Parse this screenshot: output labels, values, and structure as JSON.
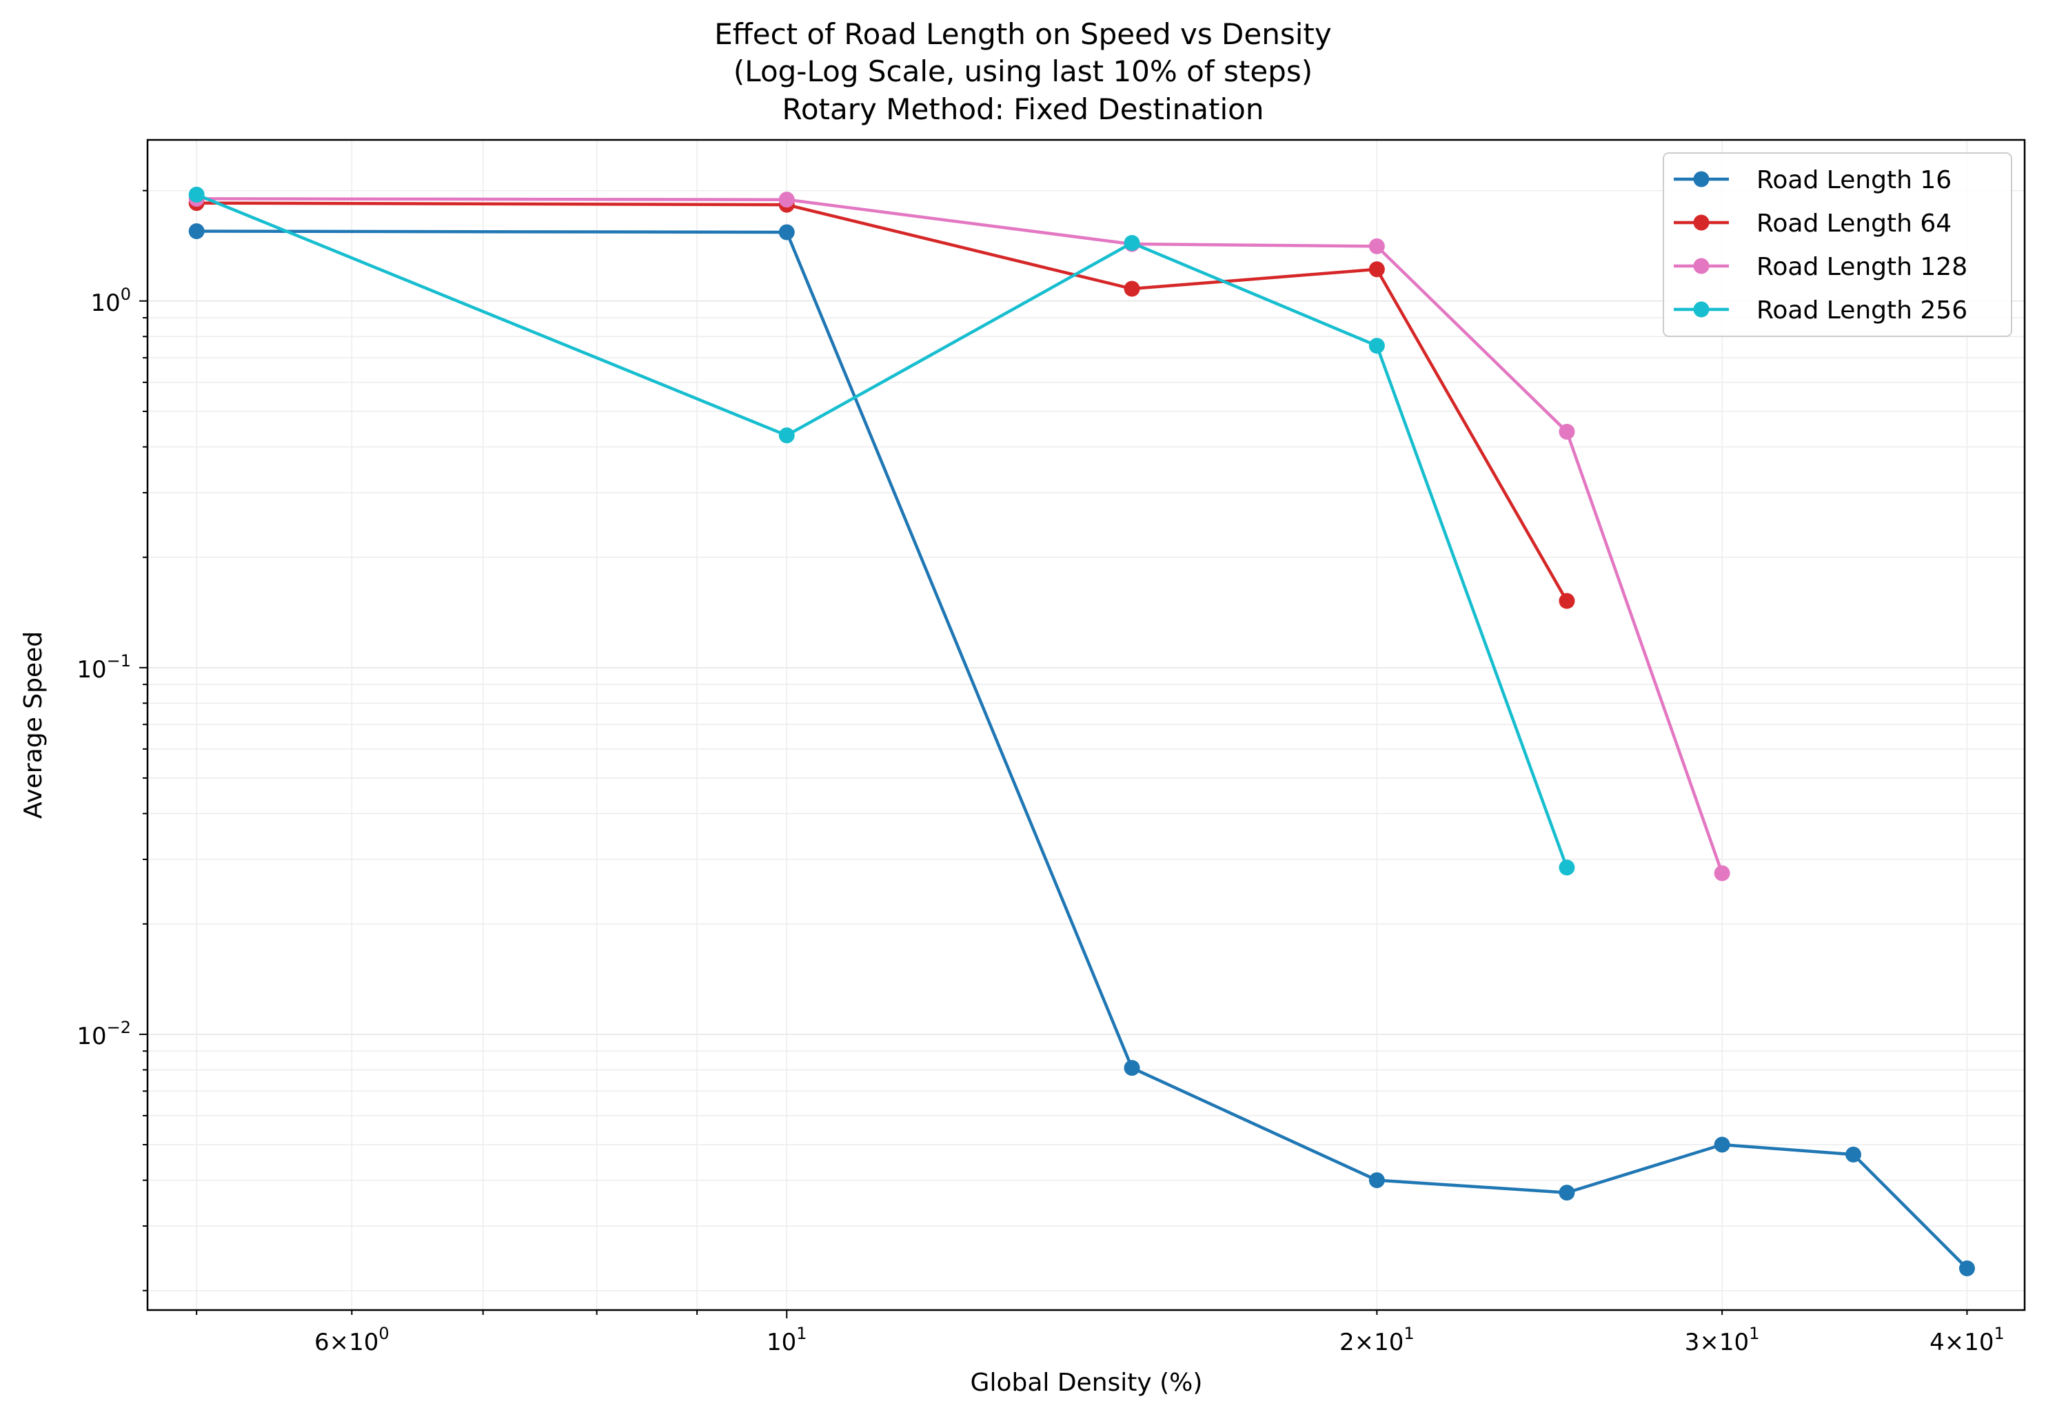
{
  "chart_data": {
    "type": "line",
    "title_lines": [
      "Effect of Road Length on Speed vs Density",
      "(Log-Log Scale, using last 10% of steps)",
      "Rotary Method: Fixed Destination"
    ],
    "xlabel": "Global Density (%)",
    "ylabel": "Average Speed",
    "xscale": "log",
    "yscale": "log",
    "xlim": [
      4.72,
      42.8
    ],
    "ylim": [
      0.00177,
      2.75
    ],
    "grid": true,
    "legend_position": "top-right",
    "x_ticks": [
      {
        "value": 6,
        "mantissa": "6",
        "exp": "0"
      },
      {
        "value": 10,
        "mantissa": "",
        "exp": "1"
      },
      {
        "value": 20,
        "mantissa": "2",
        "exp": "1"
      },
      {
        "value": 30,
        "mantissa": "3",
        "exp": "1"
      },
      {
        "value": 40,
        "mantissa": "4",
        "exp": "1"
      }
    ],
    "y_ticks": [
      {
        "value": 1,
        "exp": "0"
      },
      {
        "value": 0.1,
        "exp": "−1"
      },
      {
        "value": 0.01,
        "exp": "−2"
      }
    ],
    "series": [
      {
        "name": "Road Length 16",
        "color": "#1f77b4",
        "x": [
          5,
          10,
          15,
          20,
          25,
          30,
          35,
          40
        ],
        "y": [
          1.55,
          1.54,
          0.0081,
          0.004,
          0.0037,
          0.005,
          0.0047,
          0.0023
        ]
      },
      {
        "name": "Road Length 64",
        "color": "#d62728",
        "x": [
          5,
          10,
          15,
          20,
          25
        ],
        "y": [
          1.85,
          1.83,
          1.08,
          1.22,
          0.152
        ]
      },
      {
        "name": "Road Length 128",
        "color": "#e377c2",
        "x": [
          5,
          10,
          15,
          20,
          25,
          30
        ],
        "y": [
          1.9,
          1.89,
          1.43,
          1.41,
          0.44,
          0.0275
        ]
      },
      {
        "name": "Road Length 256",
        "color": "#17becf",
        "x": [
          5,
          10,
          15,
          20,
          25
        ],
        "y": [
          1.95,
          0.43,
          1.44,
          0.755,
          0.0285
        ]
      }
    ]
  }
}
